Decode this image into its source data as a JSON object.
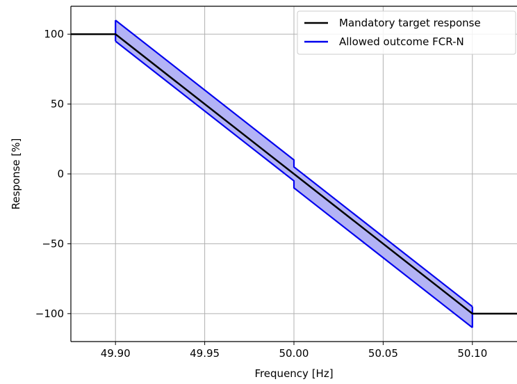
{
  "chart_data": {
    "type": "line",
    "title": "",
    "xlabel": "Frequency [Hz]",
    "ylabel": "Response [%]",
    "xlim": [
      49.875,
      50.125
    ],
    "ylim": [
      -120,
      120
    ],
    "grid": true,
    "legend_position": "top-right",
    "x_ticks": [
      49.9,
      49.95,
      50.0,
      50.05,
      50.1
    ],
    "x_tick_labels": [
      "49.90",
      "49.95",
      "50.00",
      "50.05",
      "50.10"
    ],
    "y_ticks": [
      100,
      50,
      0,
      -50,
      -100
    ],
    "y_tick_labels": [
      "100",
      "50",
      "0",
      "−50",
      "−100"
    ],
    "series": [
      {
        "name": "Mandatory target response",
        "color": "#000000",
        "x": [
          49.875,
          49.9,
          50.1,
          50.125
        ],
        "y": [
          100,
          100,
          -100,
          -100
        ]
      },
      {
        "name": "Allowed outcome FCR-N",
        "color": "#0000ee",
        "fill_color": "#b3b3f5",
        "upper": {
          "x": [
            49.9,
            50.0,
            50.0,
            50.1
          ],
          "y": [
            110,
            10,
            5,
            -95
          ]
        },
        "lower": {
          "x": [
            49.9,
            50.0,
            50.0,
            50.1
          ],
          "y": [
            95,
            -5,
            -10,
            -110
          ]
        }
      }
    ]
  }
}
